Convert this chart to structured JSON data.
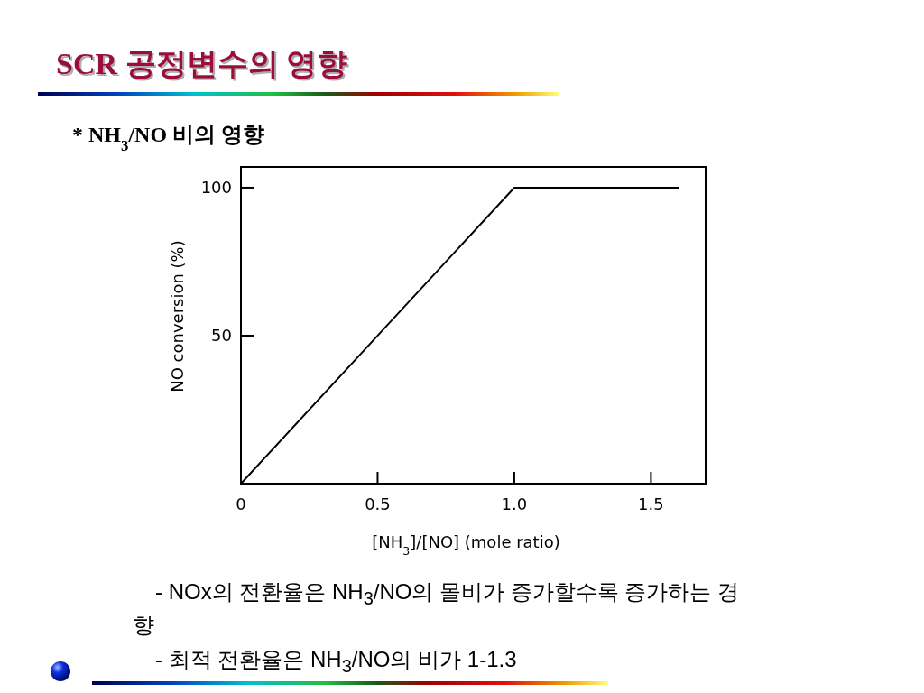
{
  "chart_data": {
    "type": "line",
    "title": "SCR 공정변수의 영향",
    "subtitle": "* NH$_{3}$/NO 비의 영향",
    "xlabel": "[NH$_{3}$]/[NO] (mole ratio)",
    "ylabel": "NO conversion (%)",
    "x": [
      0,
      1.0,
      1.6
    ],
    "series": [
      {
        "color": "#000000",
        "values": [
          0,
          100,
          100
        ]
      }
    ],
    "xlim": [
      0,
      1.7
    ],
    "ylim": [
      0,
      107
    ],
    "xticks": [
      0,
      0.5,
      {
        "value": 1,
        "label": "1.0"
      },
      1.5
    ],
    "yticks": [
      50,
      100
    ],
    "line_style": "solid",
    "annotations": [
      "- NOx의 전환율은 NH$_{3}$/NO의 몰비가 증가할수록 증가하는 경향",
      "- 최적 전환율은 NH$_{3}$/NO의 비가 1-1.3"
    ]
  }
}
